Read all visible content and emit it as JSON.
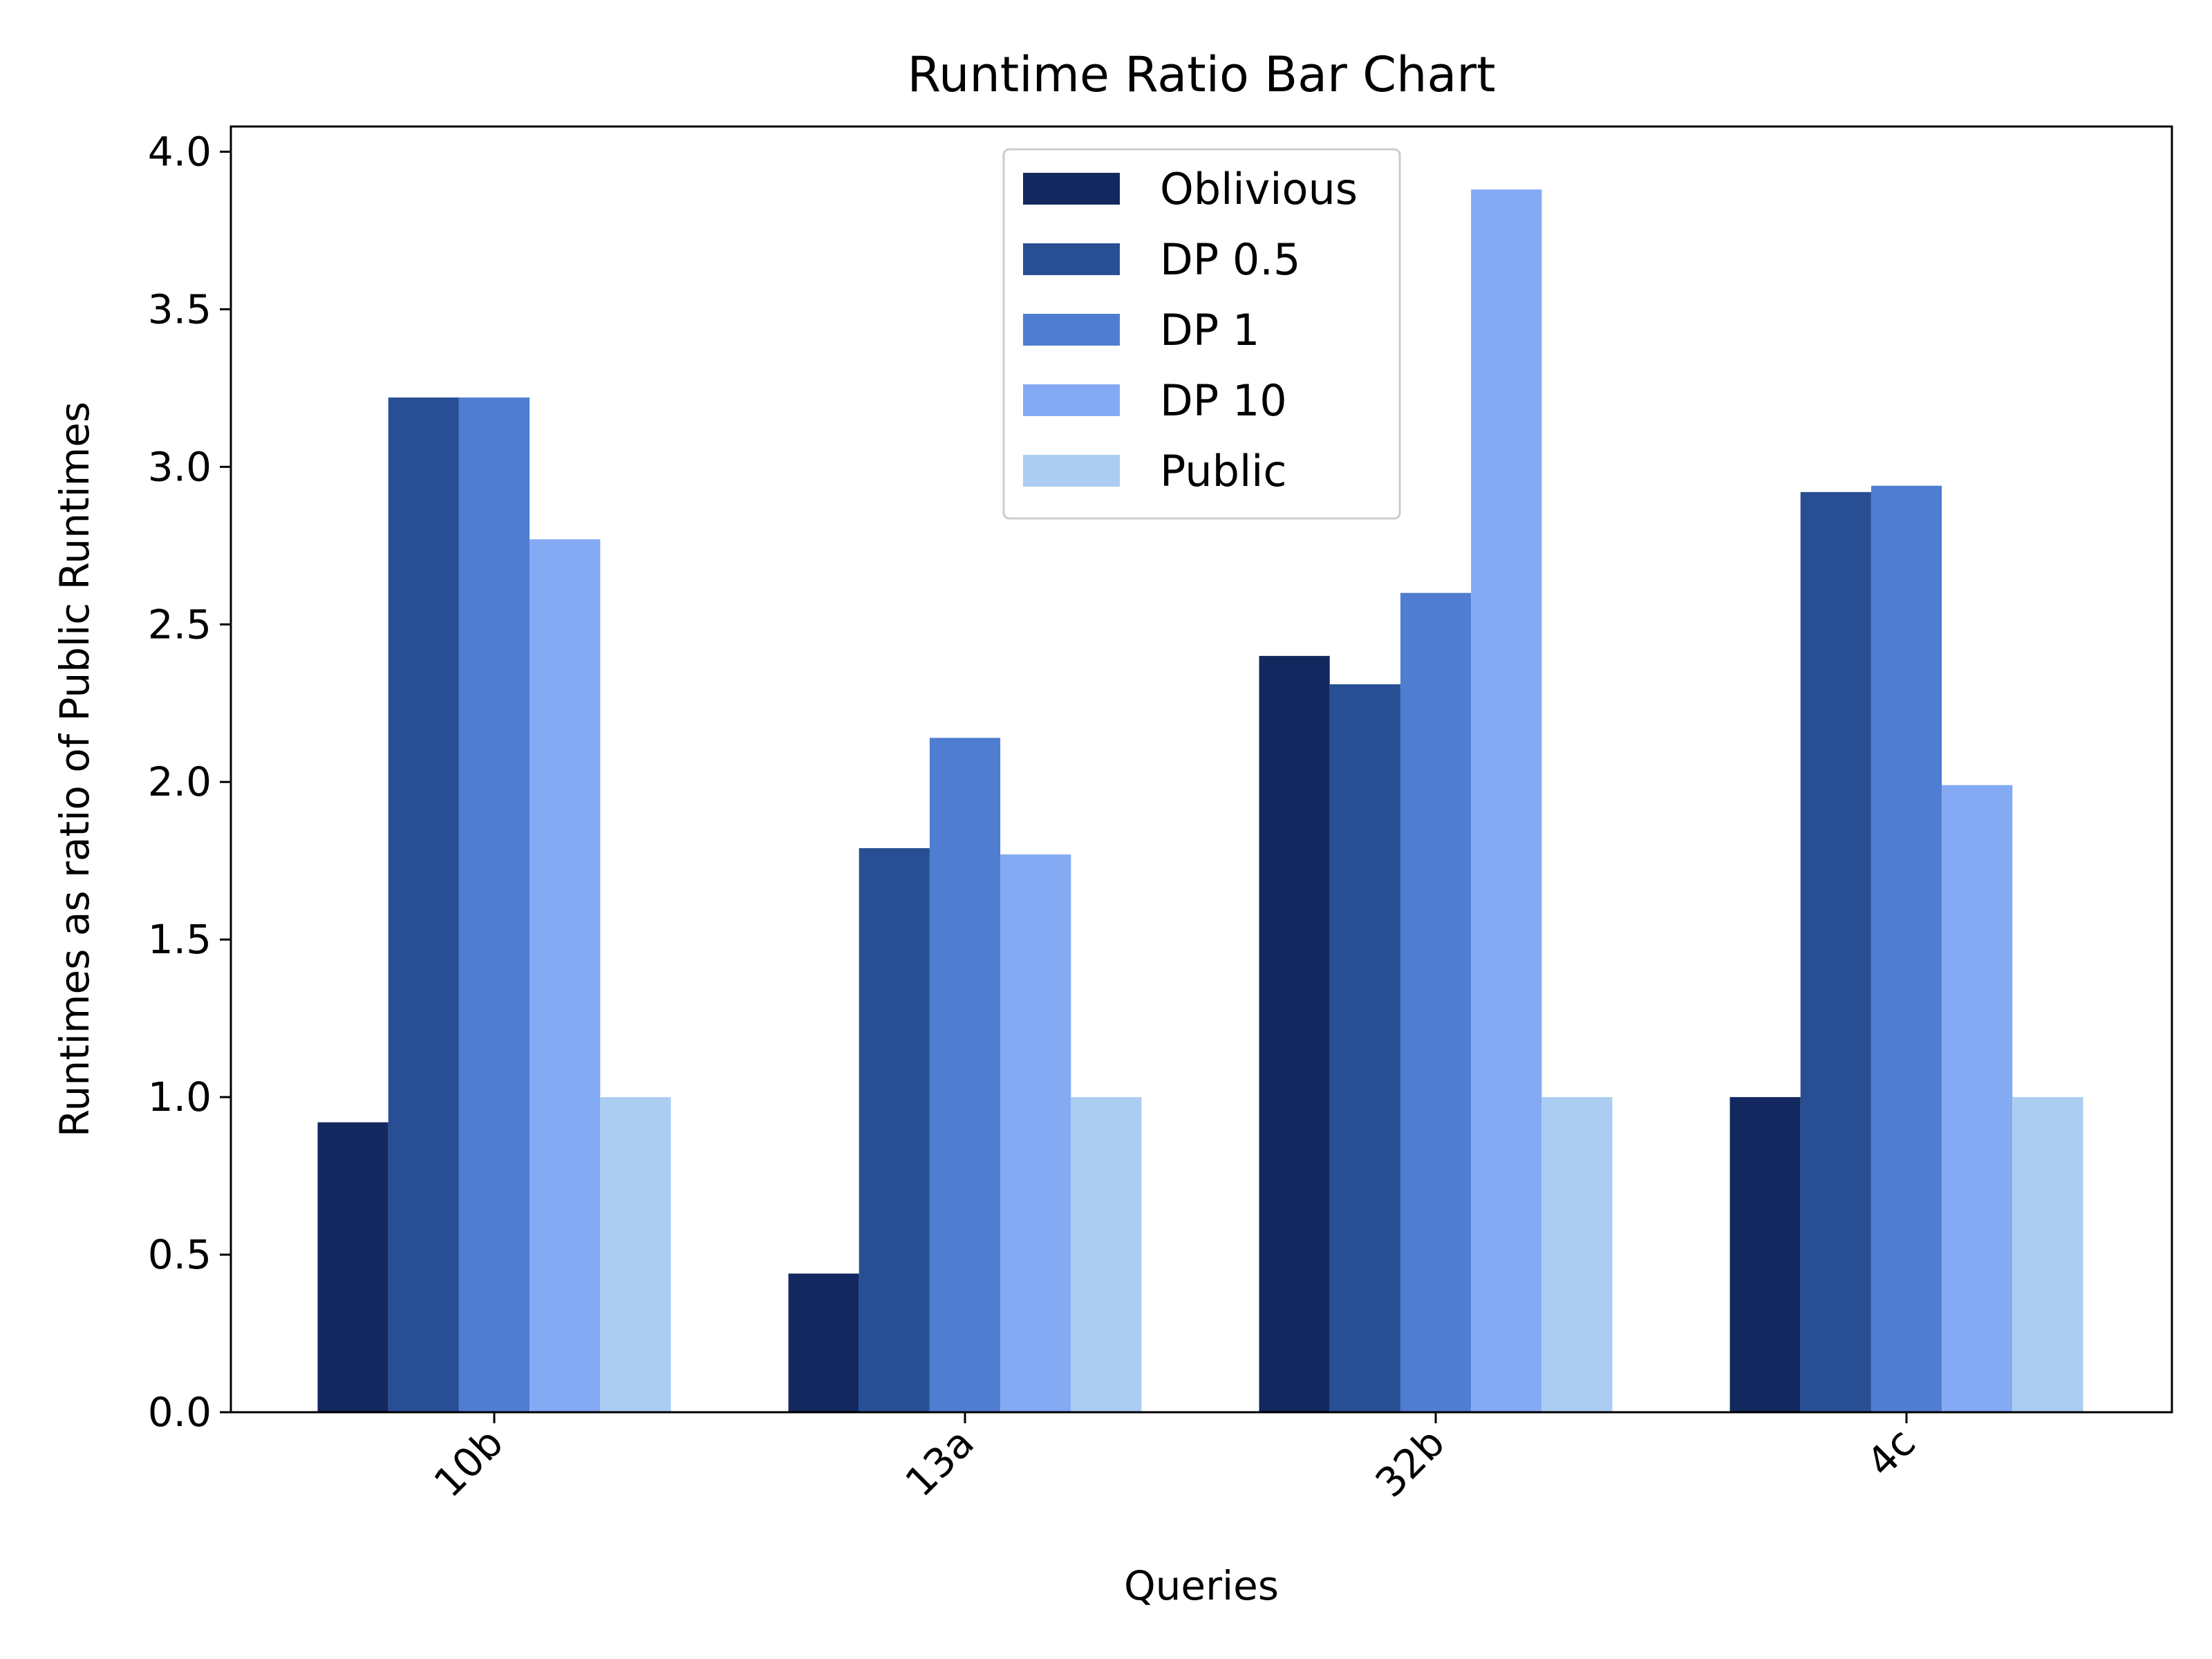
{
  "chart_data": {
    "type": "bar",
    "title": "Runtime Ratio Bar Chart",
    "xlabel": "Queries",
    "ylabel": "Runtimes as ratio of Public Runtimes",
    "categories": [
      "10b",
      "13a",
      "32b",
      "4c"
    ],
    "series": [
      {
        "name": "Oblivious",
        "color": "#13285f",
        "values": [
          0.92,
          0.44,
          2.4,
          1.0
        ]
      },
      {
        "name": "DP 0.5",
        "color": "#284f93",
        "values": [
          3.22,
          1.79,
          2.31,
          2.92
        ]
      },
      {
        "name": "DP 1",
        "color": "#4f7dd1",
        "values": [
          3.22,
          2.14,
          2.6,
          2.94
        ]
      },
      {
        "name": "DP 10",
        "color": "#84aaf4",
        "values": [
          2.77,
          1.77,
          3.88,
          1.99
        ]
      },
      {
        "name": "Public",
        "color": "#abcdf1",
        "values": [
          1.0,
          1.0,
          1.0,
          1.0
        ]
      }
    ],
    "ylim": [
      0,
      4.08
    ],
    "yticks": [
      "0.0",
      "0.5",
      "1.0",
      "1.5",
      "2.0",
      "2.5",
      "3.0",
      "3.5",
      "4.0"
    ],
    "grid": false,
    "legend_position": "top-center"
  }
}
